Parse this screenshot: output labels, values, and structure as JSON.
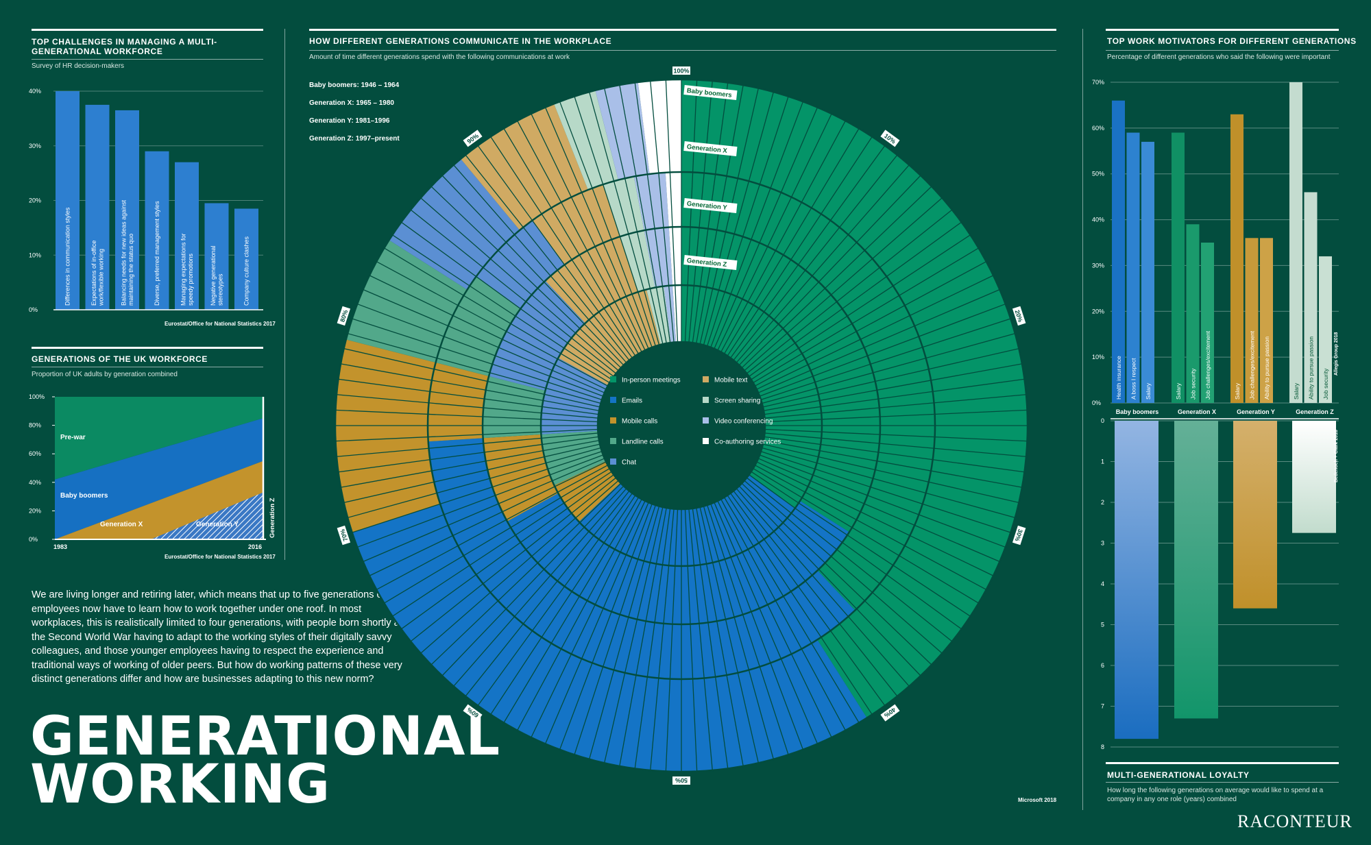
{
  "colors": {
    "bg": "#034d3e",
    "in_person": "#049468",
    "emails": "#1474c6",
    "mobile_calls": "#c3932c",
    "landline": "#52a88a",
    "chat": "#5b8fd3",
    "mobile_text": "#d0aa63",
    "screen_sharing": "#b7d9c8",
    "video_conf": "#a9bfe8",
    "coauthoring": "#ffffff",
    "prewar": "#0b8a62",
    "babyboomers": "#1670c2",
    "genx": "#c3932c",
    "geny": "#3a78c4"
  },
  "challenges": {
    "title": "TOP CHALLENGES IN MANAGING A MULTI-GENERATIONAL WORKFORCE",
    "subtitle": "Survey of HR decision-makers",
    "source": "Eurostat/Office for National Statistics 2017",
    "chart_data": {
      "type": "bar",
      "categories": [
        "Differences in communication styles",
        "Expectations of in-office work/flexible working",
        "Balancing needs for new ideas against maintaining the status quo",
        "Diverse, preferred management styles",
        "Managing expectations for speedy promotions",
        "Negative generational stereotypes",
        "Company culture clashes"
      ],
      "values": [
        40,
        37.5,
        36.5,
        29,
        27,
        19.5,
        18.5
      ],
      "ylim": [
        0,
        40
      ],
      "yticks": [
        "0%",
        "10%",
        "20%",
        "30%",
        "40%"
      ]
    }
  },
  "workforce": {
    "title": "GENERATIONS OF THE UK WORKFORCE",
    "subtitle": "Proportion of UK adults by generation combined",
    "source": "Eurostat/Office for National Statistics 2017",
    "chart_data": {
      "type": "area",
      "x": [
        1983,
        2016
      ],
      "series": [
        {
          "name": "Generation Z",
          "values": [
            0,
            0
          ]
        },
        {
          "name": "Generation Y",
          "values": [
            0,
            33
          ]
        },
        {
          "name": "Generation X",
          "values": [
            0,
            55
          ]
        },
        {
          "name": "Baby boomers",
          "values": [
            42,
            85
          ]
        },
        {
          "name": "Pre-war",
          "values": [
            100,
            100
          ]
        }
      ],
      "ylim": [
        0,
        100
      ],
      "yticks": [
        "0%",
        "20%",
        "40%",
        "60%",
        "80%",
        "100%"
      ],
      "xlabels": [
        "1983",
        "2016"
      ],
      "labels": {
        "prewar": "Pre-war",
        "boomers": "Baby boomers",
        "genx": "Generation X",
        "geny": "Generation Y",
        "genz": "Generation Z"
      }
    }
  },
  "comm": {
    "title": "HOW DIFFERENT GENERATIONS COMMUNICATE IN THE WORKPLACE",
    "subtitle": "Amount of time different generations spend with the following communications at work",
    "source": "Microsoft 2018",
    "gen_dates": [
      "Baby boomers: 1946 – 1964",
      "Generation X: 1965 – 1980",
      "Generation Y: 1981–1996",
      "Generation Z: 1997–present"
    ],
    "ring_labels": [
      "Baby boomers",
      "Generation X",
      "Generation Y",
      "Generation Z"
    ],
    "pct_labels": [
      "100%",
      "10%",
      "20%",
      "30%",
      "40%",
      "50%",
      "60%",
      "70%",
      "80%",
      "90%"
    ],
    "legend_left": [
      "In-person meetings",
      "Emails",
      "Mobile calls",
      "Landline calls",
      "Chat"
    ],
    "legend_right": [
      "Mobile text",
      "Screen sharing",
      "Video conferencing",
      "Co-authoring services"
    ],
    "chart_data": {
      "type": "radial-stacked",
      "categories": [
        "In-person meetings",
        "Emails",
        "Mobile calls",
        "Landline calls",
        "Chat",
        "Mobile text",
        "Screen sharing",
        "Video conferencing",
        "Co-authoring services"
      ],
      "series": [
        {
          "name": "Baby boomers",
          "values": [
            41,
            29,
            9,
            5,
            5,
            5,
            2,
            2,
            2
          ]
        },
        {
          "name": "Generation X",
          "values": [
            38,
            36,
            5,
            6,
            5,
            5,
            2,
            2,
            1
          ]
        },
        {
          "name": "Generation Y",
          "values": [
            34,
            33,
            7,
            5,
            9,
            7,
            2,
            2,
            1
          ]
        },
        {
          "name": "Generation Z",
          "values": [
            35,
            28,
            5,
            6,
            9,
            13,
            2,
            1,
            1
          ]
        }
      ]
    }
  },
  "motivators": {
    "title": "TOP WORK MOTIVATORS FOR DIFFERENT GENERATIONS",
    "subtitle": "Percentage of different generations who said the following were important",
    "source": "Allegis Group 2018",
    "yticks": [
      "0%",
      "10%",
      "20%",
      "30%",
      "40%",
      "50%",
      "60%",
      "70%"
    ],
    "chart_data": {
      "type": "bar",
      "ylim": [
        0,
        70
      ],
      "groups": [
        {
          "name": "Baby boomers",
          "labels": [
            "Health insurance",
            "A boss I respect",
            "Salary"
          ],
          "values": [
            66,
            59,
            57
          ]
        },
        {
          "name": "Generation X",
          "labels": [
            "Salary",
            "Job security",
            "Job challenges/excitement"
          ],
          "values": [
            59,
            39,
            35
          ]
        },
        {
          "name": "Generation Y",
          "labels": [
            "Salary",
            "Job challenges/excitement",
            "Ability to pursue passion"
          ],
          "values": [
            63,
            36,
            36
          ]
        },
        {
          "name": "Generation Z",
          "labels": [
            "Salary",
            "Ability to pursue passion",
            "Job security"
          ],
          "values": [
            70,
            46,
            32
          ]
        }
      ]
    }
  },
  "loyalty": {
    "title": "MULTI-GENERATIONAL LOYALTY",
    "subtitle": "How long the following generations on average would like to spend at a company in any one role (years) combined",
    "source": "Bedenoch + Clark 2018",
    "yticks": [
      "0",
      "1",
      "2",
      "3",
      "4",
      "5",
      "6",
      "7",
      "8"
    ],
    "chart_data": {
      "type": "bar",
      "categories": [
        "Baby boomers",
        "Generation X",
        "Generation Y",
        "Generation Z"
      ],
      "values": [
        7.8,
        7.3,
        4.6,
        2.75
      ],
      "ylim": [
        0,
        8
      ]
    }
  },
  "intro": "We are living longer and retiring later, which means that up to five generations of employees now have to learn how to work together under one roof. In most workplaces, this is realistically limited to four generations, with people born shortly after the Second World War having to adapt to the working styles of their digitally savvy colleagues, and those younger employees having to respect the experience and traditional ways of working of older peers. But how do working patterns of these very distinct generations differ and how are businesses adapting to this new norm?",
  "title_line1": "GENERATIONAL",
  "title_line2": "WORKING",
  "logo": "RACONTEUR"
}
